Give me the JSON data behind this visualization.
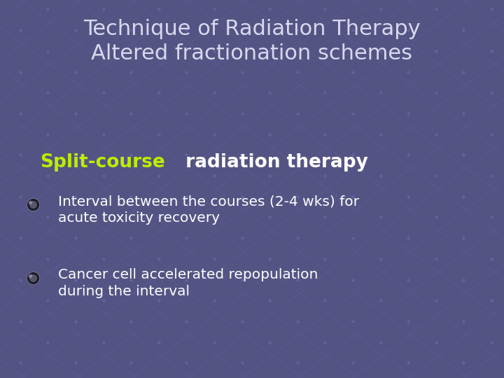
{
  "title_line1": "Technique of Radiation Therapy",
  "title_line2": "Altered fractionation schemes",
  "subtitle_green": "Split-course",
  "subtitle_white": " radiation therapy",
  "bullet1_line1": "Interval between the courses (2-4 wks) for",
  "bullet1_line2": "acute toxicity recovery",
  "bullet2_line1": "Cancer cell accelerated repopulation",
  "bullet2_line2": "during the interval",
  "bg_color": "#545484",
  "title_color": "#d8d8ee",
  "subtitle_green_color": "#bbee00",
  "subtitle_white_color": "#ffffff",
  "bullet_color": "#ffffff",
  "grid_line_color": "#6060a0",
  "grid_dot_color": "#6868a8",
  "figwidth": 7.2,
  "figheight": 5.4,
  "dpi": 100
}
